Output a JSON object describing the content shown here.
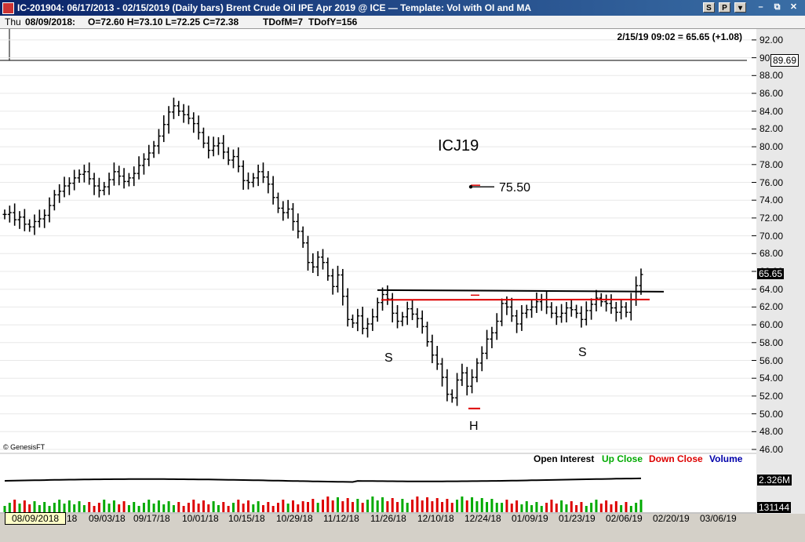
{
  "window": {
    "title": "IC-201904:  06/17/2013 - 02/15/2019  (Daily bars)   Brent Crude Oil IPE Apr 2019 @ ICE  —  Template: Vol with OI and MA",
    "buttons": [
      "S",
      "P",
      "▾"
    ]
  },
  "info_bar": {
    "day": "Thu",
    "date": "08/09/2018:",
    "ohlc": "O=72.60  H=73.10  L=72.25  C=72.38",
    "tdofm": "TDofM=7",
    "tdofy": "TDofY=156"
  },
  "quote": "2/15/19 09:02 = 65.65 (+1.08)",
  "cursor_date": "08/09/2018",
  "colors": {
    "price_bars": "#000000",
    "resistance": "#dd0000",
    "neckline": "#000000",
    "up_volume": "#00aa00",
    "down_volume": "#dd0000",
    "open_interest": "#000000"
  },
  "chart_data": {
    "type": "bar",
    "symbol_label": "ICJ19",
    "target_label": "75.50",
    "pattern_labels": {
      "left_shoulder": "S",
      "head": "H",
      "right_shoulder": "S"
    },
    "copyright": "© GenesisFT",
    "y_axis": {
      "ticks": [
        "92.00",
        "90.00",
        "88.00",
        "86.00",
        "84.00",
        "82.00",
        "80.00",
        "78.00",
        "76.00",
        "74.00",
        "72.00",
        "70.00",
        "68.00",
        "66.00",
        "64.00",
        "62.00",
        "60.00",
        "58.00",
        "56.00",
        "54.00",
        "52.00",
        "50.00",
        "48.00",
        "46.00"
      ],
      "range": [
        46,
        92
      ]
    },
    "x_axis": {
      "ticks": [
        "18",
        "09/03/18",
        "09/17/18",
        "10/01/18",
        "10/15/18",
        "10/29/18",
        "11/12/18",
        "11/26/18",
        "12/10/18",
        "12/24/18",
        "01/09/19",
        "01/23/19",
        "02/06/19",
        "02/20/19",
        "03/06/19"
      ]
    },
    "last_price_label": "65.65",
    "crosshair_price_label": "89.69",
    "target_price": 75.5,
    "close_series": [
      72.4,
      72.6,
      71.8,
      72.1,
      71.3,
      71.0,
      71.6,
      71.9,
      72.3,
      73.4,
      74.6,
      75.0,
      75.6,
      75.9,
      76.5,
      76.9,
      77.2,
      76.4,
      75.6,
      75.1,
      75.5,
      76.3,
      77.2,
      76.7,
      76.1,
      76.5,
      77.0,
      77.9,
      78.6,
      79.3,
      80.1,
      81.2,
      82.5,
      83.9,
      84.6,
      84.0,
      83.6,
      83.2,
      82.6,
      81.6,
      80.4,
      79.6,
      80.1,
      80.4,
      79.4,
      78.5,
      78.9,
      77.8,
      76.2,
      76.0,
      76.5,
      77.2,
      76.6,
      75.8,
      74.3,
      73.1,
      72.6,
      73.0,
      71.6,
      70.5,
      69.2,
      67.0,
      66.5,
      67.6,
      67.0,
      65.5,
      64.3,
      65.6,
      63.2,
      60.6,
      60.2,
      61.0,
      59.6,
      60.1,
      60.9,
      62.5,
      63.4,
      62.9,
      61.3,
      60.4,
      60.9,
      61.8,
      61.2,
      60.7,
      59.8,
      58.1,
      56.6,
      55.6,
      54.1,
      52.2,
      51.8,
      53.8,
      54.6,
      53.1,
      54.1,
      55.7,
      56.8,
      58.4,
      59.1,
      60.4,
      62.4,
      62.0,
      61.0,
      60.1,
      61.3,
      61.7,
      62.0,
      62.6,
      62.8,
      62.0,
      61.3,
      60.9,
      61.3,
      61.9,
      61.7,
      61.3,
      60.6,
      61.6,
      62.3,
      63.0,
      62.6,
      62.4,
      61.9,
      61.4,
      62.0,
      61.4,
      62.8,
      64.4,
      65.65
    ],
    "neckline": {
      "y": 63.9
    },
    "resistance_line": {
      "y": 62.8
    },
    "head_low": 50.6,
    "lower_panel": {
      "legend": [
        "Open Interest",
        "Up Close",
        "Down Close",
        "Volume"
      ],
      "open_interest_label": "2.326M",
      "volume_label": "131144"
    }
  }
}
